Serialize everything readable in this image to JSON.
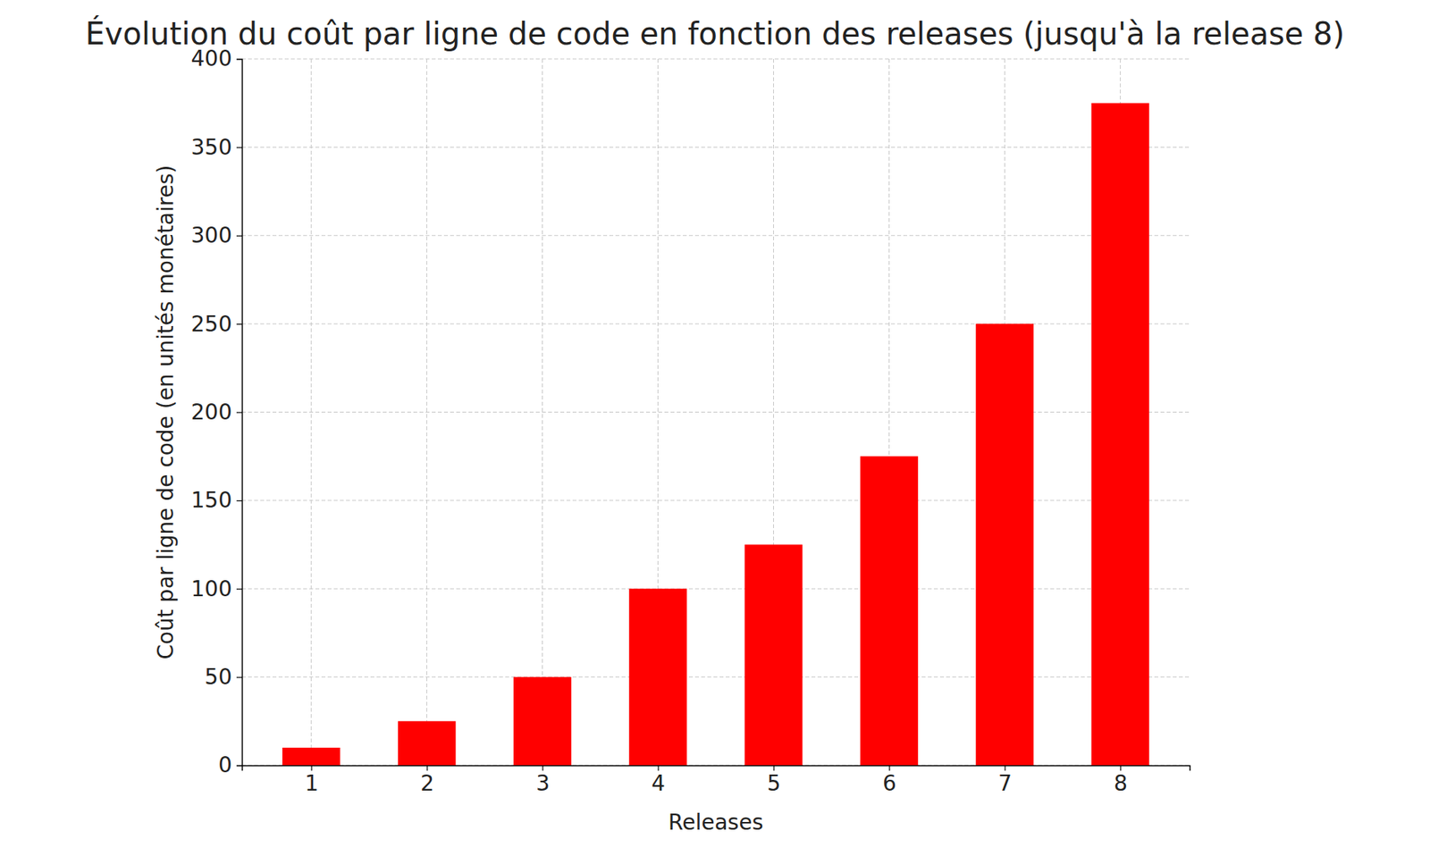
{
  "chart_data": {
    "type": "bar",
    "title": "Évolution du coût par ligne de code en fonction des releases (jusqu'à la release 8)",
    "x_label": "Releases",
    "y_label": "Coût par ligne de code (en unités monétaires)",
    "categories": [
      "1",
      "2",
      "3",
      "4",
      "5",
      "6",
      "7",
      "8"
    ],
    "values": [
      10,
      25,
      50,
      100,
      125,
      175,
      250,
      375
    ],
    "color": "red",
    "ylim": [
      0,
      400
    ],
    "yticks": [
      0,
      50,
      100,
      150,
      200,
      250,
      300,
      350,
      400
    ],
    "grid": true
  }
}
